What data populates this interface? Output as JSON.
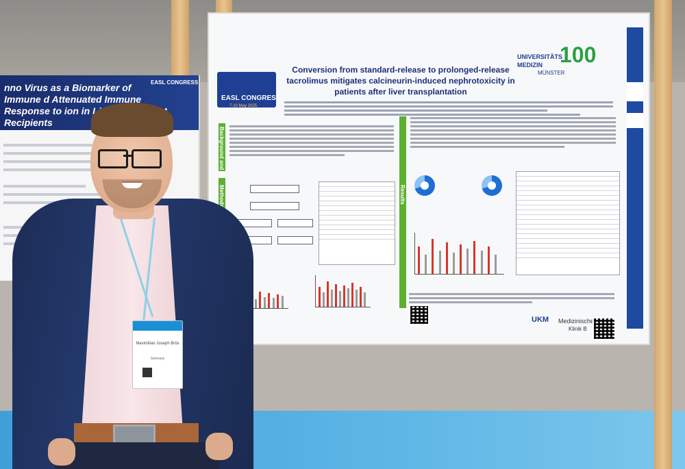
{
  "left_poster": {
    "title": "nno Virus as a Biomarker of Immune d Attenuated Immune Response to ion in Liver Transplant Recipients",
    "congress": "EASL CONGRESS"
  },
  "poster": {
    "title": "Conversion from standard-release to prolonged-release tacrolimus mitigates calcineurin-induced nephrotoxicity in patients after liver transplantation",
    "congress_logo": "EASL CONGRESS",
    "congress_dates": "7-10 May 2025",
    "university_line1": "UNIVERSITÄTS",
    "university_line2": "MEDIZIN",
    "university_line3": "MÜNSTER",
    "anniversary": "100",
    "sections": [
      "Background and Aims",
      "Methods",
      "Results"
    ],
    "hospital_logo": "UKM",
    "clinic_line1": "Medizinische",
    "clinic_line2": "Klinik B"
  },
  "badge": {
    "name": "Maximilian Joseph Brüx",
    "city": "Germany"
  },
  "colors": {
    "poster_blue": "#1d2f7a",
    "section_green": "#5cb030",
    "bar_red": "#d9342b",
    "floor_blue": "#3fa0d8"
  }
}
